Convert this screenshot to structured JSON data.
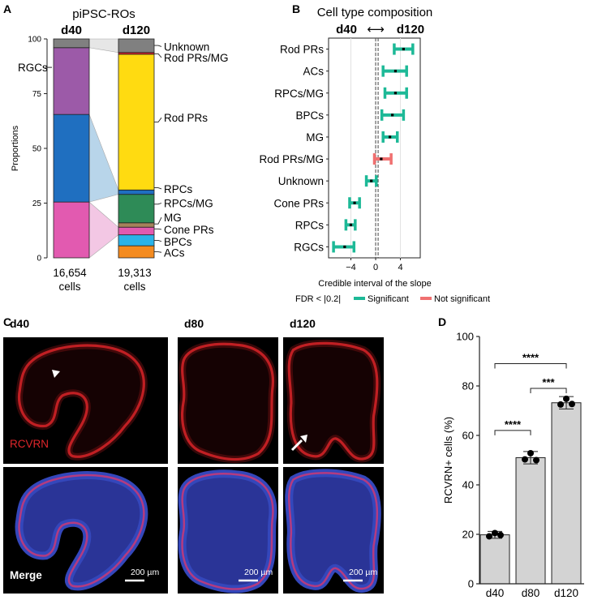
{
  "panels": {
    "a": "A",
    "b": "B",
    "c": "C",
    "d": "D"
  },
  "colors": {
    "unknown": "#808080",
    "rod_prs_mg": "#e8202a",
    "rod_prs": "#ffdb11",
    "rpcs": "#1f6fc0",
    "rpcs_mg": "#2e8b57",
    "mg": "#a5825b",
    "cone_prs": "#e25ab0",
    "bpcs": "#2bb3e8",
    "acs": "#f48b1f",
    "rgcs": "#9c5aa8",
    "significant": "#1db997",
    "not_significant": "#f07070",
    "bar_fill": "#d3d3d3",
    "rcvrn": "#e0262b",
    "dapi": "#3a4fd0"
  },
  "chart_data": [
    {
      "type": "bar",
      "subtype": "stacked",
      "title": "piPSC-ROs",
      "ylabel": "Proportions",
      "ylim": [
        0,
        100
      ],
      "yticks": [
        "0",
        "25",
        "50",
        "75",
        "100"
      ],
      "columns": [
        {
          "label": "d40",
          "cells_count": "16,654",
          "cells_word": "cells",
          "segments": [
            {
              "key": "cone_prs",
              "value": 25.5
            },
            {
              "key": "rpcs",
              "value": 40.0
            },
            {
              "key": "rgcs",
              "value": 30.5
            },
            {
              "key": "unknown",
              "value": 4.0
            }
          ]
        },
        {
          "label": "d120",
          "cells_count": "19,313",
          "cells_word": "cells",
          "segments": [
            {
              "key": "acs",
              "value": 5.5
            },
            {
              "key": "bpcs",
              "value": 5.0
            },
            {
              "key": "cone_prs",
              "value": 3.5
            },
            {
              "key": "mg",
              "value": 2.0
            },
            {
              "key": "rpcs_mg",
              "value": 13.0
            },
            {
              "key": "rpcs",
              "value": 2.0
            },
            {
              "key": "rod_prs",
              "value": 62.0
            },
            {
              "key": "rod_prs_mg",
              "value": 0.8
            },
            {
              "key": "unknown",
              "value": 6.2
            }
          ]
        }
      ],
      "left_labels": [
        {
          "text": "RGCs",
          "value": 87
        }
      ],
      "right_labels": [
        {
          "text": "Unknown",
          "target": 97,
          "pos": 96.5
        },
        {
          "text": "Rod PRs/MG",
          "target": 93.2,
          "pos": 91.5
        },
        {
          "text": "Rod PRs",
          "target": 62,
          "pos": 64
        },
        {
          "text": "RPCs",
          "target": 32,
          "pos": 31.5
        },
        {
          "text": "RPCs/MG",
          "target": 24.5,
          "pos": 25
        },
        {
          "text": "MG",
          "target": 15.5,
          "pos": 18.5
        },
        {
          "text": "Cone PRs",
          "target": 13.2,
          "pos": 13
        },
        {
          "text": "BPCs",
          "target": 8,
          "pos": 7.5
        },
        {
          "text": "ACs",
          "target": 2.75,
          "pos": 2.5
        }
      ]
    },
    {
      "type": "scatter",
      "subtype": "interval",
      "title": "Cell type composition",
      "header_left": "d40",
      "header_arrow": "⟷",
      "header_right": "d120",
      "xlabel": "Credible interval of the slope",
      "xlim": [
        -7.6,
        7.2
      ],
      "xticks": [
        -4,
        0,
        4
      ],
      "xtick_labels": [
        "−4",
        "0",
        "4"
      ],
      "vlines": [
        0,
        0.4
      ],
      "legend_title": "FDR < |0.2|",
      "legend": [
        {
          "text": "Significant",
          "key": "significant"
        },
        {
          "text": "Not significant",
          "key": "not_significant"
        }
      ],
      "rows": [
        {
          "label": "Rod PRs",
          "low": 3.0,
          "mid": 4.5,
          "high": 6.0,
          "sig": true
        },
        {
          "label": "ACs",
          "low": 1.2,
          "mid": 3.2,
          "high": 5.0,
          "sig": true
        },
        {
          "label": "RPCs/MG",
          "low": 1.5,
          "mid": 3.2,
          "high": 5.0,
          "sig": true
        },
        {
          "label": "BPCs",
          "low": 1.0,
          "mid": 2.7,
          "high": 4.5,
          "sig": true
        },
        {
          "label": "MG",
          "low": 1.2,
          "mid": 2.3,
          "high": 3.5,
          "sig": true
        },
        {
          "label": "Rod PRs/MG",
          "low": -0.2,
          "mid": 0.9,
          "high": 2.5,
          "sig": false
        },
        {
          "label": "Unknown",
          "low": -1.5,
          "mid": -0.7,
          "high": 0.1,
          "sig": true
        },
        {
          "label": "Cone PRs",
          "low": -4.2,
          "mid": -3.4,
          "high": -2.6,
          "sig": true
        },
        {
          "label": "RPCs",
          "low": -4.8,
          "mid": -4.0,
          "high": -3.3,
          "sig": true
        },
        {
          "label": "RGCs",
          "low": -6.8,
          "mid": -5.0,
          "high": -3.5,
          "sig": true
        }
      ]
    },
    {
      "type": "bar",
      "ylabel": "RCVRN+ cells (%)",
      "ylim": [
        0,
        100
      ],
      "yticks": [
        0,
        20,
        40,
        60,
        80,
        100
      ],
      "categories": [
        "d40",
        "d80",
        "d120"
      ],
      "values": [
        19.8,
        51.0,
        73.2
      ],
      "errors": [
        1.4,
        2.5,
        2.5
      ],
      "points": [
        [
          19.2,
          20.5,
          19.7
        ],
        [
          50.3,
          52.8,
          50.0
        ],
        [
          72.5,
          74.8,
          72.7
        ]
      ],
      "significance": [
        {
          "from": 0,
          "to": 1,
          "label": "****",
          "y": 62
        },
        {
          "from": 1,
          "to": 2,
          "label": "***",
          "y": 79
        },
        {
          "from": 0,
          "to": 2,
          "label": "****",
          "y": 89
        }
      ]
    }
  ],
  "micrographs": {
    "columns": [
      "d40",
      "d80",
      "d120"
    ],
    "row1_label": "RCVRN",
    "row2_label": "Merge",
    "scale_label": "200 µm"
  }
}
